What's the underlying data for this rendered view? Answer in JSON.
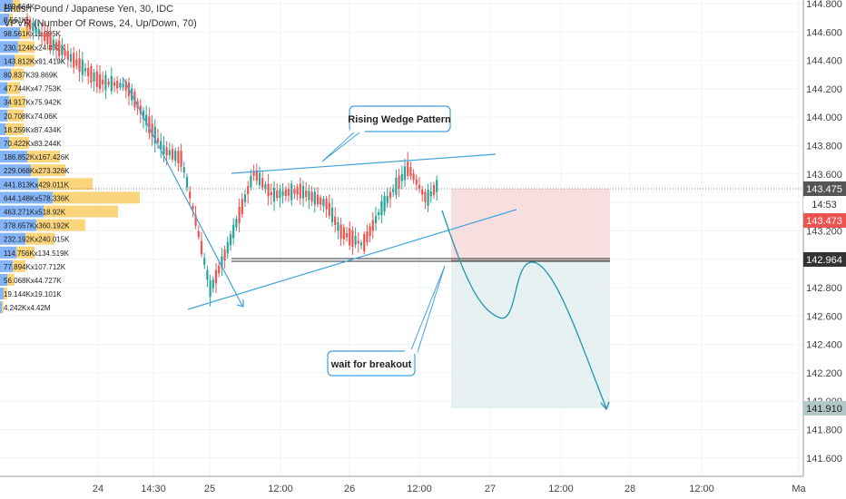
{
  "header": {
    "symbol_title": "British Pound / Japanese Yen, 30, IDC",
    "indicator": "VPVR (Number Of Rows, 24, Up/Down, 70)"
  },
  "annotations": {
    "pattern_label": "Rising Wedge Pattern",
    "breakout_label": "wait for breakout"
  },
  "price_axis": {
    "ticks": [
      "144.800",
      "144.600",
      "144.400",
      "144.200",
      "144.000",
      "143.800",
      "143.600",
      "143.400",
      "143.200",
      "143.000",
      "142.800",
      "142.600",
      "142.400",
      "142.200",
      "142.000",
      "141.800",
      "141.600"
    ],
    "last_price": "143.475",
    "countdown": "14:53",
    "bid_price": "143.473",
    "level_price": "142.964",
    "target_price": "141.910"
  },
  "time_axis": {
    "labels": [
      "24",
      "14:30",
      "25",
      "12:00",
      "26",
      "12:00",
      "27",
      "12:00",
      "28",
      "12:00",
      "Ma"
    ]
  },
  "volume_profile": {
    "rows": [
      "189.664K",
      "8.561K",
      "98.561Kx11.295K",
      "230.124Kx24.872K",
      "143.812Kx91.419K",
      "80.837K39.869K",
      "47.744Kx47.753K",
      "34.917Kx75.942K",
      "20.708Kx74.06K",
      "18.259Kx87.434K",
      "70.422Kx83.244K",
      "186.852Kx167.426K",
      "229.068Kx273.326K",
      "441.813Kx429.011K",
      "644.148Kx578.336K",
      "463.271Kx518.92K",
      "378.657Kx360.192K",
      "232.192Kx240.015K",
      "114.756Kx134.519K",
      "77.894Kx107.712K",
      "56.068Kx44.727K",
      "19.144Kx19.101K",
      "4.242Kx4.42M"
    ],
    "up_color": "#5b9cf6",
    "down_color": "#f9c74f"
  },
  "colors": {
    "bull": "#26a69a",
    "bear": "#ef5350",
    "wedge": "#3fa3dd",
    "stop_zone": "#f7d9d9",
    "target_zone": "#e6f0f0",
    "path": "#2196a8",
    "price_box": "#555555",
    "bid_box": "#ef5350",
    "target_box": "#b2c7c7"
  },
  "chart_data": {
    "type": "candlestick",
    "symbol": "British Pound / Japanese Yen",
    "interval": "30",
    "source": "IDC",
    "ylim": [
      141.4,
      144.85
    ],
    "last_price": 143.475,
    "key_level": 142.964,
    "target": 141.91,
    "wedge_upper": [
      [
        143.63,
        "25 05:00"
      ],
      [
        143.73,
        "26 23:00"
      ]
    ],
    "wedge_lower": [
      [
        142.82,
        "24 22:00"
      ],
      [
        143.29,
        "26 23:00"
      ]
    ],
    "projection": "bearish breakout to 141.910"
  }
}
